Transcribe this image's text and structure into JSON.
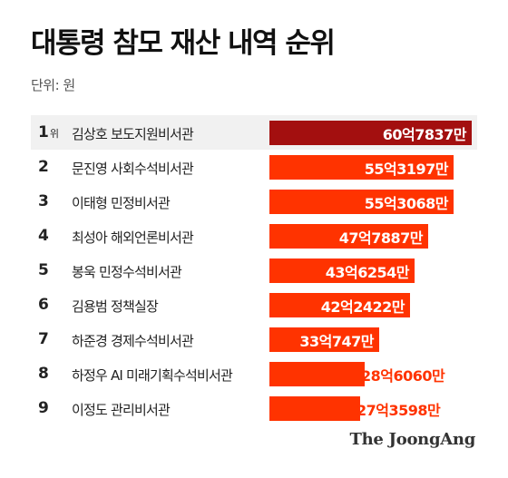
{
  "header": {
    "title": "대통령 참모 재산 내역 순위",
    "unit": "단위: 원"
  },
  "colors": {
    "top_bar": "#a30f0f",
    "bar": "#ff3300",
    "row_shade": "#f1f1f1"
  },
  "logo": "The JoongAng",
  "chart_data": {
    "type": "bar",
    "orientation": "horizontal",
    "title": "대통령 참모 재산 내역 순위",
    "unit_label": "단위: 원",
    "rank_suffix": "위",
    "rows": [
      {
        "rank": "1",
        "name": "김상호 보도지원비서관",
        "label": "60억7837만",
        "value": 6078370000
      },
      {
        "rank": "2",
        "name": "문진영 사회수석비서관",
        "label": "55억3197만",
        "value": 5531970000
      },
      {
        "rank": "3",
        "name": "이태형 민정비서관",
        "label": "55억3068만",
        "value": 5530680000
      },
      {
        "rank": "4",
        "name": "최성아 해외언론비서관",
        "label": "47억7887만",
        "value": 4778870000
      },
      {
        "rank": "5",
        "name": "봉욱  민정수석비서관",
        "label": "43억6254만",
        "value": 4362540000
      },
      {
        "rank": "6",
        "name": "김용범 정책실장",
        "label": "42억2422만",
        "value": 4224220000
      },
      {
        "rank": "7",
        "name": "하준경 경제수석비서관",
        "label": "33억747만",
        "value": 3307470000
      },
      {
        "rank": "8",
        "name": "하정우 AI 미래기획수석비서관",
        "label": "28억6060만",
        "value": 2860600000
      },
      {
        "rank": "9",
        "name": "이정도 관리비서관",
        "label": "27억3598만",
        "value": 2735980000
      }
    ]
  }
}
